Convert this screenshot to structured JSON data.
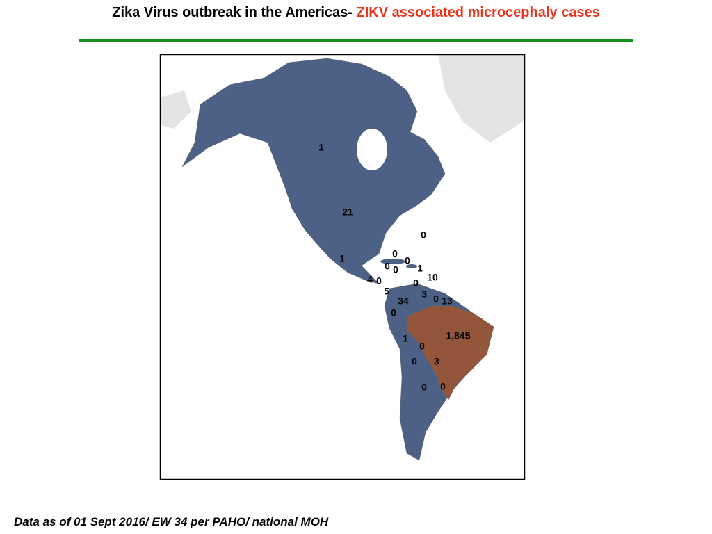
{
  "header": {
    "title": "Zika Virus outbreak in the Americas- ",
    "title_highlight": "ZIKV associated microcephaly cases"
  },
  "map": {
    "labels": [
      "1",
      "21",
      "0",
      "1",
      "0",
      "0",
      "0",
      "0",
      "1",
      "4",
      "0",
      "10",
      "0",
      "5",
      "3",
      "0",
      "13",
      "34",
      "0",
      "1,845",
      "1",
      "0",
      "0",
      "3",
      "0",
      "0"
    ]
  },
  "footer": {
    "note": "Data as of 01 Sept 2016/ EW 34 per PAHO/ national MOH"
  }
}
